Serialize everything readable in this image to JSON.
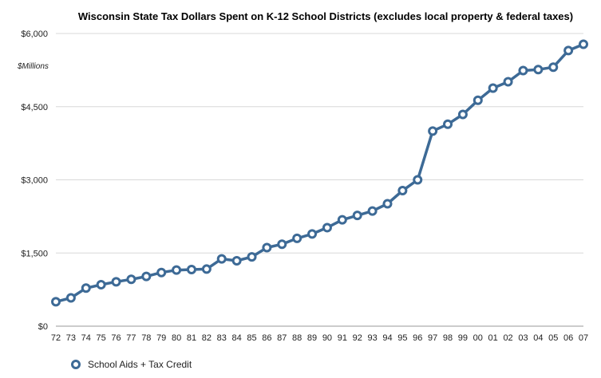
{
  "chart_data": {
    "type": "line",
    "title": "Wisconsin State Tax Dollars Spent on K-12 School Districts (excludes local property & federal taxes)",
    "ylabel": "$Millions",
    "xlabel": "",
    "ylim": [
      0,
      6000
    ],
    "yticks": [
      0,
      1500,
      3000,
      4500,
      6000
    ],
    "ytick_labels": [
      "$0",
      "$1,500",
      "$3,000",
      "$4,500",
      "$6,000"
    ],
    "grid": true,
    "legend_position": "bottom-left",
    "categories": [
      "72",
      "73",
      "74",
      "75",
      "76",
      "77",
      "78",
      "79",
      "80",
      "81",
      "82",
      "83",
      "84",
      "85",
      "86",
      "87",
      "88",
      "89",
      "90",
      "91",
      "92",
      "93",
      "94",
      "95",
      "96",
      "97",
      "98",
      "99",
      "00",
      "01",
      "02",
      "03",
      "04",
      "05",
      "06",
      "07"
    ],
    "series": [
      {
        "name": "School Aids + Tax Credit",
        "color": "#3d6a96",
        "values": [
          500,
          580,
          780,
          850,
          910,
          960,
          1020,
          1100,
          1150,
          1160,
          1170,
          1380,
          1340,
          1420,
          1610,
          1680,
          1800,
          1890,
          2020,
          2180,
          2270,
          2360,
          2510,
          2780,
          3000,
          4000,
          4140,
          4340,
          4630,
          4880,
          5010,
          5240,
          5260,
          5310,
          5650,
          5780
        ]
      }
    ]
  }
}
